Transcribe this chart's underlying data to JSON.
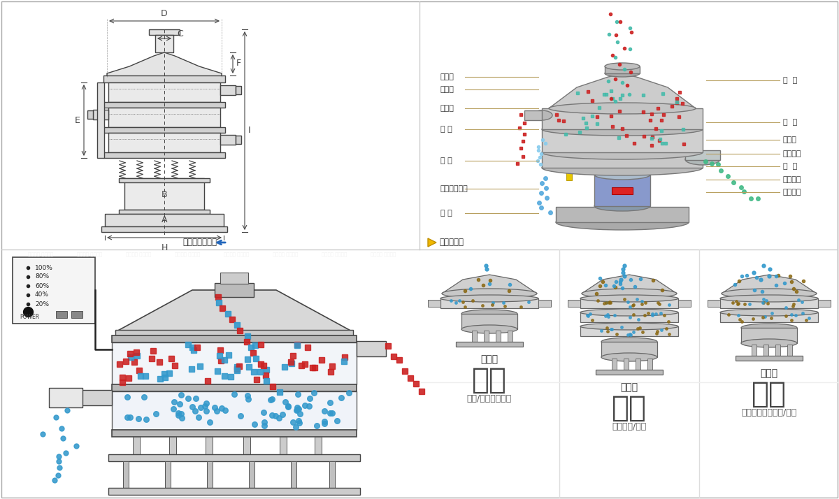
{
  "bg_color": "#ffffff",
  "panel_border": "#cccccc",
  "dim_labels": [
    "D",
    "C",
    "F",
    "E",
    "B",
    "A",
    "H",
    "I"
  ],
  "left_labels": [
    "进料口",
    "防尘盖",
    "出料口",
    "束 环",
    "弹 簧",
    "运输固定螺栓",
    "机 座"
  ],
  "right_labels": [
    "筛  网",
    "网  架",
    "加重块",
    "上部重锤",
    "筛  盘",
    "振动电机",
    "下部重锤"
  ],
  "nav_left": "外形尺寸示意图",
  "nav_right": "结构示意图",
  "sections": [
    {
      "title": "分级",
      "subtitle": "单层式",
      "desc": "颗粒/粉末准确分级",
      "layers": 1
    },
    {
      "title": "过滤",
      "subtitle": "三层式",
      "desc": "去除异物/结块",
      "layers": 3
    },
    {
      "title": "除杂",
      "subtitle": "双层式",
      "desc": "去除液体中的颗粒/异物",
      "layers": 2
    }
  ],
  "red_color": "#cc2222",
  "blue_color": "#3399cc",
  "brown_color": "#8B6914",
  "line_color": "#333333",
  "label_line_color": "#b8a060",
  "arrow_color": "#2266bb",
  "gold_color": "#f0b800"
}
